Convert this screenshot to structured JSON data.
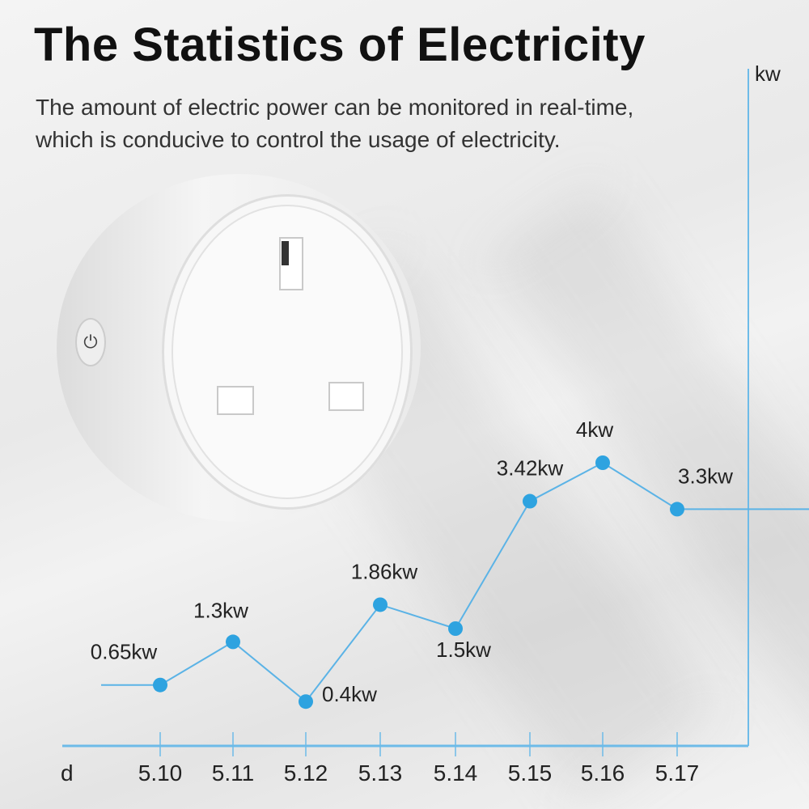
{
  "header": {
    "title": "The Statistics of Electricity",
    "subtitle_lines": [
      "The amount of electric power can be monitored in real-time,",
      "which is conducive to control the usage of electricity."
    ]
  },
  "product": {
    "button_icon": "power-icon"
  },
  "chart_data": {
    "type": "line",
    "title": "",
    "xlabel": "d",
    "ylabel": "kw",
    "categories": [
      "5.10",
      "5.11",
      "5.12",
      "5.13",
      "5.14",
      "5.15",
      "5.16",
      "5.17"
    ],
    "values": [
      0.65,
      1.3,
      0.4,
      1.86,
      1.5,
      3.42,
      4,
      3.3
    ],
    "data_labels": [
      "0.65kw",
      "1.3kw",
      "0.4kw",
      "1.86kw",
      "1.5kw",
      "3.42kw",
      "4kw",
      "3.3kw"
    ],
    "ylim": [
      0,
      4.5
    ],
    "grid": false,
    "colors": {
      "line": "#5bb3e6",
      "point": "#2ea3e0",
      "axis": "#6dbbe8"
    }
  }
}
